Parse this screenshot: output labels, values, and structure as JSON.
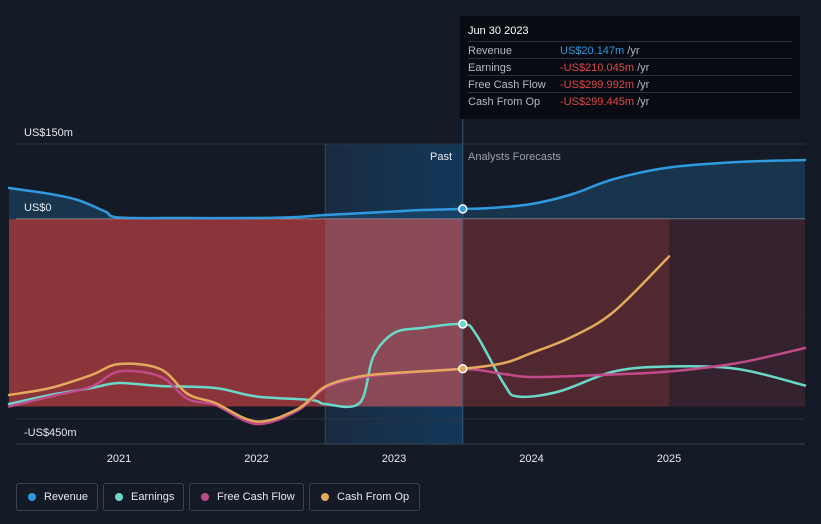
{
  "chart_data": {
    "type": "area",
    "y_axis_labels": [
      "US$150m",
      "US$0",
      "-US$450m"
    ],
    "x_ticks": [
      "2021",
      "2022",
      "2023",
      "2024",
      "2025"
    ],
    "region_labels": {
      "past": "Past",
      "forecast": "Analysts Forecasts"
    },
    "grid": true,
    "colors": {
      "revenue": "#2f9ae0",
      "earnings": "#6ad9c9",
      "free_cash_flow": "#c04a8a",
      "cash_from_op": "#e3a95c"
    },
    "series": [
      {
        "name": "Revenue",
        "key": "revenue",
        "x": [
          2020.2,
          2020.5,
          2020.7,
          2020.9,
          2021.0,
          2021.5,
          2022.0,
          2022.3,
          2022.5,
          2023.0,
          2023.2,
          2023.5,
          2023.7,
          2024.0,
          2024.3,
          2024.6,
          2025.0,
          2025.5,
          2026.0
        ],
        "y": [
          62,
          50,
          38,
          15,
          3,
          2,
          2,
          4,
          8,
          15,
          18,
          20.147,
          22,
          30,
          50,
          80,
          103,
          114,
          118
        ]
      },
      {
        "name": "Earnings",
        "key": "earnings",
        "x": [
          2020.2,
          2020.5,
          2020.8,
          2021.0,
          2021.3,
          2021.7,
          2022.0,
          2022.4,
          2022.5,
          2022.75,
          2022.85,
          2023.0,
          2023.2,
          2023.5,
          2023.6,
          2023.8,
          2023.9,
          2024.2,
          2024.6,
          2025.0,
          2025.5,
          2026.0
        ],
        "y": [
          -370,
          -352,
          -338,
          -328,
          -334,
          -338,
          -355,
          -362,
          -370,
          -368,
          -275,
          -228,
          -218,
          -210.045,
          -232,
          -330,
          -355,
          -345,
          -305,
          -295,
          -300,
          -333
        ]
      },
      {
        "name": "Free Cash Flow",
        "key": "free_cash_flow",
        "x": [
          2020.2,
          2020.5,
          2020.8,
          2021.0,
          2021.3,
          2021.5,
          2021.7,
          2022.0,
          2022.3,
          2022.5,
          2022.75,
          2023.0,
          2023.5,
          2023.8,
          2024.0,
          2024.5,
          2025.0,
          2025.5,
          2026.0
        ],
        "y": [
          -375,
          -355,
          -335,
          -305,
          -315,
          -360,
          -372,
          -410,
          -383,
          -338,
          -318,
          -310,
          -299.992,
          -310,
          -316,
          -312,
          -305,
          -288,
          -258
        ]
      },
      {
        "name": "Cash From Op",
        "key": "cash_from_op",
        "x": [
          2020.2,
          2020.5,
          2020.8,
          2021.0,
          2021.3,
          2021.5,
          2021.7,
          2022.0,
          2022.3,
          2022.5,
          2022.75,
          2023.0,
          2023.5,
          2023.8,
          2024.0,
          2024.3,
          2024.6,
          2025.0
        ],
        "y": [
          -352,
          -338,
          -312,
          -290,
          -300,
          -350,
          -368,
          -405,
          -380,
          -335,
          -315,
          -308,
          -299.445,
          -288,
          -268,
          -235,
          -185,
          -75
        ]
      }
    ]
  },
  "tooltip": {
    "date": "Jun 30 2023",
    "rows": [
      {
        "label": "Revenue",
        "value": "US$20.147m",
        "unit": "/yr",
        "color": "#2f9ae0"
      },
      {
        "label": "Earnings",
        "value": "-US$210.045m",
        "unit": "/yr",
        "color": "#e0484b"
      },
      {
        "label": "Free Cash Flow",
        "value": "-US$299.992m",
        "unit": "/yr",
        "color": "#e0484b"
      },
      {
        "label": "Cash From Op",
        "value": "-US$299.445m",
        "unit": "/yr",
        "color": "#e0484b"
      }
    ]
  },
  "legend": [
    {
      "label": "Revenue",
      "color": "#2f9ae0"
    },
    {
      "label": "Earnings",
      "color": "#6ad9c9"
    },
    {
      "label": "Free Cash Flow",
      "color": "#c04a8a"
    },
    {
      "label": "Cash From Op",
      "color": "#e3a95c"
    }
  ]
}
